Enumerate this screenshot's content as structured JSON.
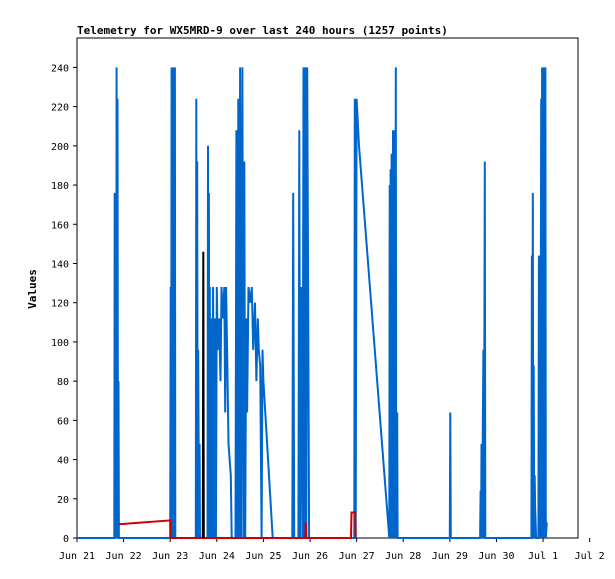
{
  "chart_data": {
    "type": "line",
    "title": "Telemetry for WX5MRD-9 over last 240 hours (1257 points)",
    "xlabel": "",
    "ylabel": "Values",
    "ylim": [
      0,
      255
    ],
    "xlim_days": [
      21,
      31.75
    ],
    "grid": false,
    "legend": "none",
    "y_ticks": [
      0,
      20,
      40,
      60,
      80,
      100,
      120,
      140,
      160,
      180,
      200,
      220,
      240
    ],
    "x_ticks": [
      {
        "label": "Jun 21",
        "day": 21
      },
      {
        "label": "Jun 22",
        "day": 22
      },
      {
        "label": "Jun 23",
        "day": 23
      },
      {
        "label": "Jun 24",
        "day": 24
      },
      {
        "label": "Jun 25",
        "day": 25
      },
      {
        "label": "Jun 26",
        "day": 26
      },
      {
        "label": "Jun 27",
        "day": 27
      },
      {
        "label": "Jun 28",
        "day": 28
      },
      {
        "label": "Jun 29",
        "day": 29
      },
      {
        "label": "Jun 30",
        "day": 30
      },
      {
        "label": "Jul 1",
        "day": 31
      },
      {
        "label": "Jul 2",
        "day": 32
      }
    ],
    "series": [
      {
        "color": "#0066cc",
        "points": [
          [
            21.0,
            0
          ],
          [
            21.8,
            0
          ],
          [
            21.81,
            176
          ],
          [
            21.82,
            0
          ],
          [
            21.83,
            48
          ],
          [
            21.84,
            0
          ],
          [
            21.85,
            240
          ],
          [
            21.86,
            0
          ],
          [
            21.87,
            224
          ],
          [
            21.88,
            0
          ],
          [
            21.89,
            80
          ],
          [
            21.9,
            0
          ],
          [
            23.0,
            0
          ],
          [
            23.01,
            128
          ],
          [
            23.02,
            0
          ],
          [
            23.03,
            240
          ],
          [
            23.04,
            0
          ],
          [
            23.05,
            112
          ],
          [
            23.06,
            0
          ],
          [
            23.07,
            240
          ],
          [
            23.08,
            0
          ],
          [
            23.1,
            240
          ],
          [
            23.11,
            0
          ],
          [
            23.55,
            0
          ],
          [
            23.56,
            224
          ],
          [
            23.57,
            0
          ],
          [
            23.58,
            192
          ],
          [
            23.59,
            0
          ],
          [
            23.6,
            96
          ],
          [
            23.62,
            0
          ],
          [
            23.63,
            48
          ],
          [
            23.64,
            0
          ],
          [
            23.8,
            0
          ],
          [
            23.81,
            200
          ],
          [
            23.82,
            0
          ],
          [
            23.83,
            176
          ],
          [
            23.84,
            0
          ],
          [
            23.85,
            128
          ],
          [
            23.86,
            0
          ],
          [
            23.88,
            112
          ],
          [
            23.9,
            0
          ],
          [
            23.92,
            128
          ],
          [
            23.94,
            0
          ],
          [
            23.96,
            112
          ],
          [
            23.98,
            0
          ],
          [
            24.0,
            128
          ],
          [
            24.02,
            96
          ],
          [
            24.05,
            112
          ],
          [
            24.08,
            80
          ],
          [
            24.1,
            128
          ],
          [
            24.13,
            112
          ],
          [
            24.16,
            128
          ],
          [
            24.18,
            64
          ],
          [
            24.2,
            128
          ],
          [
            24.22,
            96
          ],
          [
            24.25,
            48
          ],
          [
            24.3,
            32
          ],
          [
            24.32,
            0
          ],
          [
            24.4,
            0
          ],
          [
            24.42,
            208
          ],
          [
            24.44,
            0
          ],
          [
            24.46,
            224
          ],
          [
            24.48,
            0
          ],
          [
            24.5,
            240
          ],
          [
            24.52,
            0
          ],
          [
            24.55,
            240
          ],
          [
            24.57,
            0
          ],
          [
            24.59,
            192
          ],
          [
            24.61,
            0
          ],
          [
            24.63,
            112
          ],
          [
            24.65,
            64
          ],
          [
            24.68,
            128
          ],
          [
            24.72,
            120
          ],
          [
            24.75,
            128
          ],
          [
            24.78,
            96
          ],
          [
            24.82,
            120
          ],
          [
            24.85,
            80
          ],
          [
            24.88,
            112
          ],
          [
            24.9,
            96
          ],
          [
            24.93,
            88
          ],
          [
            24.96,
            0
          ],
          [
            24.98,
            96
          ],
          [
            25.0,
            80
          ],
          [
            25.2,
            0
          ],
          [
            25.5,
            0
          ],
          [
            25.62,
            0
          ],
          [
            25.64,
            176
          ],
          [
            25.66,
            0
          ],
          [
            25.75,
            0
          ],
          [
            25.77,
            208
          ],
          [
            25.79,
            0
          ],
          [
            25.82,
            128
          ],
          [
            25.84,
            0
          ],
          [
            25.86,
            240
          ],
          [
            25.88,
            0
          ],
          [
            25.9,
            240
          ],
          [
            25.92,
            0
          ],
          [
            25.94,
            240
          ],
          [
            25.96,
            120
          ],
          [
            25.98,
            0
          ],
          [
            26.95,
            0
          ],
          [
            26.96,
            224
          ],
          [
            26.98,
            0
          ],
          [
            27.0,
            224
          ],
          [
            27.05,
            200
          ],
          [
            27.7,
            0
          ],
          [
            27.71,
            180
          ],
          [
            27.72,
            0
          ],
          [
            27.73,
            188
          ],
          [
            27.74,
            0
          ],
          [
            27.75,
            196
          ],
          [
            27.76,
            0
          ],
          [
            27.78,
            208
          ],
          [
            27.8,
            0
          ],
          [
            27.82,
            208
          ],
          [
            27.83,
            0
          ],
          [
            27.84,
            240
          ],
          [
            27.85,
            0
          ],
          [
            27.87,
            64
          ],
          [
            27.88,
            0
          ],
          [
            29.0,
            0
          ],
          [
            29.01,
            64
          ],
          [
            29.02,
            0
          ],
          [
            29.65,
            0
          ],
          [
            29.66,
            24
          ],
          [
            29.67,
            0
          ],
          [
            29.68,
            48
          ],
          [
            29.69,
            0
          ],
          [
            29.72,
            96
          ],
          [
            29.73,
            0
          ],
          [
            29.75,
            192
          ],
          [
            29.76,
            0
          ],
          [
            30.75,
            0
          ],
          [
            30.76,
            144
          ],
          [
            30.77,
            0
          ],
          [
            30.78,
            176
          ],
          [
            30.79,
            0
          ],
          [
            30.8,
            88
          ],
          [
            30.81,
            0
          ],
          [
            30.82,
            32
          ],
          [
            30.83,
            16
          ],
          [
            30.85,
            0
          ],
          [
            30.9,
            0
          ],
          [
            30.91,
            144
          ],
          [
            30.92,
            0
          ],
          [
            30.93,
            144
          ],
          [
            30.94,
            0
          ],
          [
            30.96,
            224
          ],
          [
            30.97,
            0
          ],
          [
            30.98,
            240
          ],
          [
            30.99,
            0
          ],
          [
            31.0,
            240
          ],
          [
            31.01,
            176
          ],
          [
            31.02,
            0
          ],
          [
            31.03,
            240
          ],
          [
            31.04,
            0
          ],
          [
            31.05,
            240
          ],
          [
            31.06,
            0
          ],
          [
            31.08,
            8
          ]
        ]
      },
      {
        "color": "#cc0000",
        "points": [
          [
            21.9,
            7
          ],
          [
            23.0,
            9
          ],
          [
            23.01,
            0
          ],
          [
            25.9,
            0
          ],
          [
            25.91,
            8
          ],
          [
            25.92,
            0
          ],
          [
            26.88,
            0
          ],
          [
            26.89,
            13
          ],
          [
            26.97,
            13
          ],
          [
            26.98,
            0
          ]
        ]
      },
      {
        "color": "#000000",
        "points": [
          [
            23.7,
            0
          ],
          [
            23.71,
            146
          ],
          [
            23.72,
            0
          ]
        ]
      }
    ]
  }
}
